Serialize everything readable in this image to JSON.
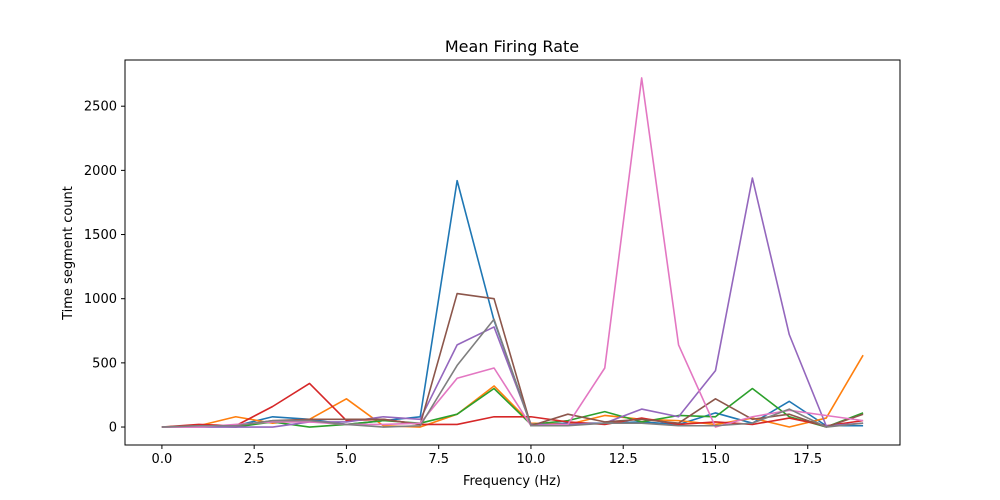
{
  "chart_data": {
    "type": "line",
    "title": "Mean Firing Rate",
    "xlabel": "Frequency (Hz)",
    "ylabel": "Time segment count",
    "xlim": [
      -1,
      20
    ],
    "ylim": [
      -140,
      2860
    ],
    "xticks": [
      0.0,
      2.5,
      5.0,
      7.5,
      10.0,
      12.5,
      15.0,
      17.5
    ],
    "xtick_labels": [
      "0.0",
      "2.5",
      "5.0",
      "7.5",
      "10.0",
      "12.5",
      "15.0",
      "17.5"
    ],
    "yticks": [
      0,
      500,
      1000,
      1500,
      2000,
      2500
    ],
    "ytick_labels": [
      "0",
      "500",
      "1000",
      "1500",
      "2000",
      "2500"
    ],
    "grid": false,
    "x": [
      0,
      1,
      2,
      3,
      4,
      5,
      6,
      7,
      8,
      9,
      10,
      11,
      12,
      13,
      14,
      15,
      16,
      17,
      18,
      19
    ],
    "series": [
      {
        "color": "#1f77b4",
        "values": [
          0,
          10,
          10,
          80,
          60,
          20,
          50,
          80,
          1920,
          830,
          20,
          30,
          30,
          40,
          20,
          110,
          30,
          200,
          10,
          10
        ]
      },
      {
        "color": "#ff7f0e",
        "values": [
          0,
          10,
          80,
          30,
          60,
          220,
          10,
          0,
          100,
          320,
          30,
          20,
          90,
          60,
          50,
          20,
          70,
          0,
          70,
          560
        ]
      },
      {
        "color": "#2ca02c",
        "values": [
          0,
          10,
          0,
          40,
          0,
          20,
          50,
          30,
          100,
          300,
          20,
          50,
          120,
          40,
          90,
          80,
          300,
          80,
          0,
          110
        ]
      },
      {
        "color": "#d62728",
        "values": [
          0,
          20,
          10,
          160,
          340,
          50,
          60,
          20,
          20,
          80,
          80,
          40,
          20,
          70,
          20,
          40,
          20,
          70,
          10,
          50
        ]
      },
      {
        "color": "#9467bd",
        "values": [
          0,
          0,
          0,
          0,
          40,
          40,
          80,
          60,
          640,
          780,
          20,
          20,
          30,
          140,
          80,
          440,
          1940,
          720,
          10,
          30
        ]
      },
      {
        "color": "#8c564b",
        "values": [
          0,
          10,
          10,
          50,
          60,
          60,
          60,
          20,
          1040,
          1000,
          10,
          100,
          40,
          60,
          30,
          220,
          60,
          100,
          0,
          100
        ]
      },
      {
        "color": "#e377c2",
        "values": [
          0,
          0,
          20,
          40,
          40,
          20,
          20,
          30,
          380,
          460,
          10,
          20,
          460,
          2720,
          640,
          0,
          80,
          130,
          90,
          50
        ]
      },
      {
        "color": "#7f7f7f",
        "values": [
          0,
          10,
          10,
          50,
          50,
          20,
          0,
          10,
          480,
          840,
          10,
          10,
          30,
          30,
          10,
          10,
          30,
          140,
          0,
          30
        ]
      }
    ]
  }
}
